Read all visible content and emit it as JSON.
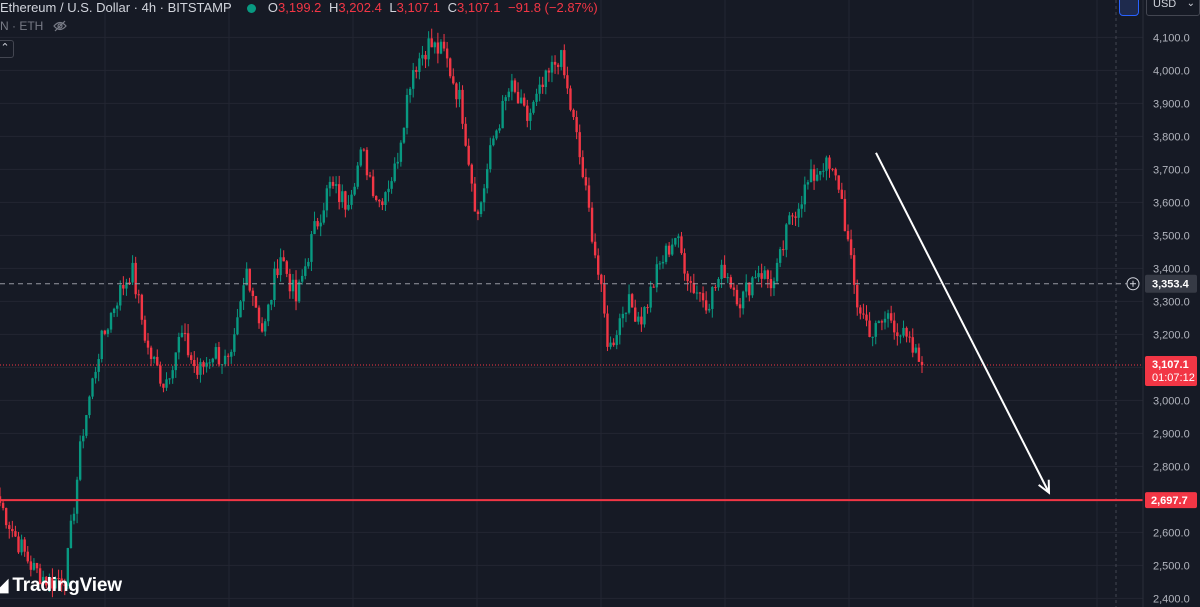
{
  "header": {
    "title": "Ethereum / U.S. Dollar · 4h · BITSTAMP",
    "open_key": "O",
    "open": "3,199.2",
    "high_key": "H",
    "high": "3,202.4",
    "low_key": "L",
    "low": "3,107.1",
    "close_key": "C",
    "close": "3,107.1",
    "change": "−91.8 (−2.87%)",
    "sub_label": "N · ETH",
    "collapse_icon": "chevron-up-icon"
  },
  "toolbar": {
    "currency": "USD"
  },
  "watermark": {
    "text": "TradingView"
  },
  "colors": {
    "up": "#089981",
    "down": "#f23645",
    "background": "#161a25",
    "grid": "#232632",
    "support": "#f23645",
    "arrow": "#ffffff"
  },
  "chart_data": {
    "type": "candlestick",
    "title": "Ethereum / U.S. Dollar · 4h · BITSTAMP",
    "xlabel": "",
    "ylabel": "",
    "ylim": [
      2380,
      4160
    ],
    "y_ticks": [
      2400,
      2500,
      2600,
      2700,
      2800,
      2900,
      3000,
      3100,
      3200,
      3300,
      3400,
      3500,
      3600,
      3700,
      3800,
      3900,
      4000,
      4100
    ],
    "y_tick_labels": [
      "2,400.0",
      "2,500.0",
      "2,600.0",
      "2,700.0",
      "2,800.0",
      "2,900.0",
      "3,000.0",
      "3,100.0",
      "3,200.0",
      "3,300.0",
      "3,400.0",
      "3,500.0",
      "3,600.0",
      "3,700.0",
      "3,800.0",
      "3,900.0",
      "4,000.0",
      "4,100.0"
    ],
    "grid": true,
    "price_path": [
      2690,
      2580,
      2490,
      2450,
      2470,
      2900,
      3150,
      3300,
      3400,
      3150,
      3050,
      3200,
      3080,
      3150,
      3100,
      3400,
      3200,
      3450,
      3300,
      3500,
      3650,
      3600,
      3750,
      3600,
      3700,
      4000,
      4080,
      4050,
      3900,
      3550,
      3800,
      3950,
      3850,
      3950,
      4050,
      3800,
      3500,
      3150,
      3300,
      3250,
      3400,
      3500,
      3350,
      3300,
      3400,
      3300,
      3400,
      3350,
      3550,
      3650,
      3720,
      3650,
      3300,
      3200,
      3260,
      3180,
      3107
    ],
    "current_price": {
      "value": 3107.1,
      "label": "3,107.1",
      "countdown": "01:07:12"
    },
    "crosshair_price": {
      "value": 3353.4,
      "label": "3,353.4"
    },
    "support_level": {
      "value": 2697.7,
      "label": "2,697.7"
    },
    "annotation_arrow": {
      "from": [
        3750,
        "right"
      ],
      "to": [
        2700,
        "far-right"
      ],
      "note": "projected decline"
    }
  }
}
